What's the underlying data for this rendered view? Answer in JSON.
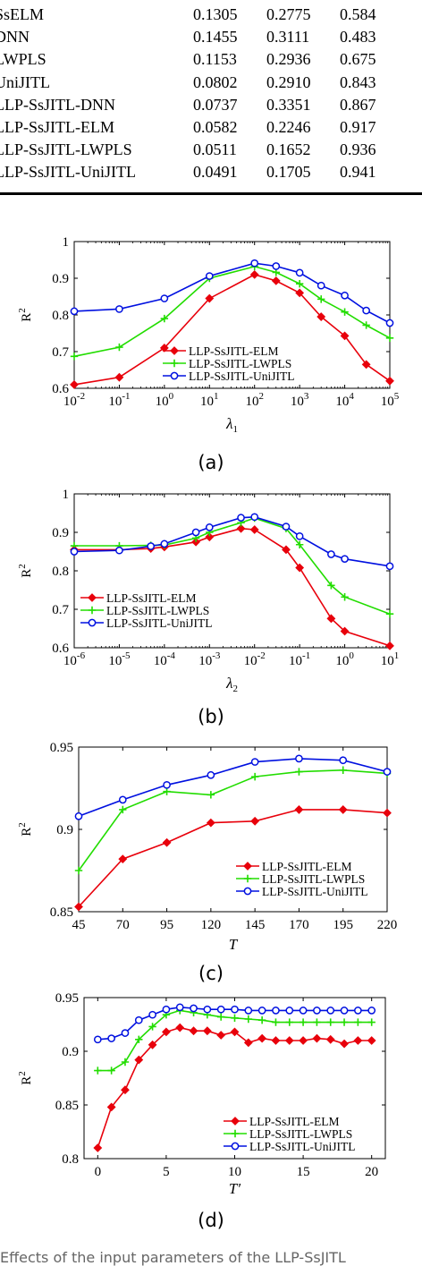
{
  "colors": {
    "elm": "#e8000b",
    "lwpls": "#22dd00",
    "unijitl": "#0010e0",
    "axis": "#000000"
  },
  "table": {
    "rows": [
      {
        "method": "SsELM",
        "v1": "0.1305",
        "v2": "0.2775",
        "v3": "0.584"
      },
      {
        "method": "DNN",
        "v1": "0.1455",
        "v2": "0.3111",
        "v3": "0.483"
      },
      {
        "method": "LWPLS",
        "v1": "0.1153",
        "v2": "0.2936",
        "v3": "0.675"
      },
      {
        "method": "UniJITL",
        "v1": "0.0802",
        "v2": "0.2910",
        "v3": "0.843"
      },
      {
        "method": "LLP-SsJITL-DNN",
        "v1": "0.0737",
        "v2": "0.3351",
        "v3": "0.867"
      },
      {
        "method": "LLP-SsJITL-ELM",
        "v1": "0.0582",
        "v2": "0.2246",
        "v3": "0.917"
      },
      {
        "method": "LLP-SsJITL-LWPLS",
        "v1": "0.0511",
        "v2": "0.1652",
        "v3": "0.936"
      },
      {
        "method": "LLP-SsJITL-UniJITL",
        "v1": "0.0491",
        "v2": "0.1705",
        "v3": "0.941"
      }
    ]
  },
  "chart_data": [
    {
      "type": "line",
      "caption": "(a)",
      "xlabel": "λ1",
      "ylabel": "R2",
      "xscale": "log",
      "xlim": [
        0.01,
        100000
      ],
      "ylim": [
        0.6,
        1
      ],
      "xticks": [
        "10^-2",
        "10^-1",
        "10^0",
        "10^1",
        "10^2",
        "10^3",
        "10^4",
        "10^5"
      ],
      "yticks": [
        "0.6",
        "0.7",
        "0.8",
        "0.9",
        "1"
      ],
      "legend_position": "bottom-center",
      "x": [
        0.01,
        0.1,
        1,
        10,
        100,
        300,
        1000,
        3000,
        10000,
        30000,
        100000
      ],
      "series": [
        {
          "name": "LLP-SsJITL-ELM",
          "marker": "diamond",
          "values": [
            0.61,
            0.63,
            0.71,
            0.845,
            0.91,
            0.893,
            0.86,
            0.795,
            0.743,
            0.665,
            0.62
          ]
        },
        {
          "name": "LLP-SsJITL-LWPLS",
          "marker": "plus",
          "values": [
            0.687,
            0.712,
            0.79,
            0.9,
            0.932,
            0.916,
            0.885,
            0.843,
            0.808,
            0.772,
            0.737
          ]
        },
        {
          "name": "LLP-SsJITL-UniJITL",
          "marker": "circle",
          "values": [
            0.81,
            0.816,
            0.845,
            0.906,
            0.941,
            0.933,
            0.915,
            0.88,
            0.853,
            0.812,
            0.778
          ]
        }
      ]
    },
    {
      "type": "line",
      "caption": "(b)",
      "xlabel": "λ2",
      "ylabel": "R2",
      "xscale": "log",
      "xlim": [
        1e-06,
        10
      ],
      "ylim": [
        0.6,
        1
      ],
      "xticks": [
        "10^-6",
        "10^-5",
        "10^-4",
        "10^-3",
        "10^-2",
        "10^-1",
        "10^0",
        "10^1"
      ],
      "yticks": [
        "0.6",
        "0.7",
        "0.8",
        "0.9",
        "1"
      ],
      "legend_position": "bottom-left",
      "x": [
        1e-06,
        1e-05,
        5e-05,
        0.0001,
        0.0005,
        0.001,
        0.005,
        0.01,
        0.05,
        0.1,
        0.5,
        1,
        10
      ],
      "series": [
        {
          "name": "LLP-SsJITL-ELM",
          "marker": "diamond",
          "values": [
            0.855,
            0.855,
            0.858,
            0.862,
            0.875,
            0.888,
            0.91,
            0.907,
            0.855,
            0.808,
            0.676,
            0.643,
            0.605
          ]
        },
        {
          "name": "LLP-SsJITL-LWPLS",
          "marker": "plus",
          "values": [
            0.865,
            0.865,
            0.866,
            0.867,
            0.885,
            0.9,
            0.925,
            0.937,
            0.91,
            0.868,
            0.762,
            0.732,
            0.688
          ]
        },
        {
          "name": "LLP-SsJITL-UniJITL",
          "marker": "circle",
          "values": [
            0.85,
            0.853,
            0.864,
            0.87,
            0.9,
            0.913,
            0.938,
            0.94,
            0.915,
            0.89,
            0.843,
            0.831,
            0.812
          ]
        }
      ]
    },
    {
      "type": "line",
      "caption": "(c)",
      "xlabel": "T",
      "ylabel": "R2",
      "xscale": "linear",
      "xlim": [
        45,
        220
      ],
      "ylim": [
        0.85,
        0.95
      ],
      "xticks": [
        "45",
        "70",
        "95",
        "120",
        "145",
        "170",
        "195",
        "220"
      ],
      "yticks": [
        "0.85",
        "0.9",
        "0.95"
      ],
      "legend_position": "bottom-right",
      "x": [
        45,
        70,
        95,
        120,
        145,
        170,
        195,
        220
      ],
      "series": [
        {
          "name": "LLP-SsJITL-ELM",
          "marker": "diamond",
          "values": [
            0.853,
            0.882,
            0.892,
            0.904,
            0.905,
            0.912,
            0.912,
            0.91
          ]
        },
        {
          "name": "LLP-SsJITL-LWPLS",
          "marker": "plus",
          "values": [
            0.875,
            0.912,
            0.923,
            0.921,
            0.932,
            0.935,
            0.936,
            0.934
          ]
        },
        {
          "name": "LLP-SsJITL-UniJITL",
          "marker": "circle",
          "values": [
            0.908,
            0.918,
            0.927,
            0.933,
            0.941,
            0.943,
            0.942,
            0.935
          ]
        }
      ]
    },
    {
      "type": "line",
      "caption": "(d)",
      "xlabel": "T′",
      "ylabel": "R2",
      "xscale": "linear",
      "xlim": [
        -1,
        21
      ],
      "ylim": [
        0.8,
        0.95
      ],
      "xticks": [
        "0",
        "5",
        "10",
        "15",
        "20"
      ],
      "xtickvals": [
        0,
        5,
        10,
        15,
        20
      ],
      "yticks": [
        "0.8",
        "0.85",
        "0.9",
        "0.95"
      ],
      "legend_position": "bottom-right",
      "x": [
        0,
        1,
        2,
        3,
        4,
        5,
        6,
        7,
        8,
        9,
        10,
        11,
        12,
        13,
        14,
        15,
        16,
        17,
        18,
        19,
        20
      ],
      "series": [
        {
          "name": "LLP-SsJITL-ELM",
          "marker": "diamond",
          "values": [
            0.81,
            0.848,
            0.864,
            0.892,
            0.906,
            0.918,
            0.922,
            0.919,
            0.919,
            0.915,
            0.918,
            0.908,
            0.912,
            0.91,
            0.91,
            0.91,
            0.912,
            0.911,
            0.907,
            0.91,
            0.91
          ]
        },
        {
          "name": "LLP-SsJITL-LWPLS",
          "marker": "plus",
          "values": [
            0.882,
            0.882,
            0.89,
            0.911,
            0.923,
            0.934,
            0.938,
            0.936,
            0.934,
            0.932,
            0.931,
            0.93,
            0.929,
            0.927,
            0.927,
            0.927,
            0.927,
            0.927,
            0.927,
            0.927,
            0.927
          ]
        },
        {
          "name": "LLP-SsJITL-UniJITL",
          "marker": "circle",
          "values": [
            0.911,
            0.912,
            0.917,
            0.929,
            0.934,
            0.939,
            0.941,
            0.94,
            0.939,
            0.939,
            0.939,
            0.938,
            0.938,
            0.938,
            0.938,
            0.938,
            0.938,
            0.938,
            0.938,
            0.938,
            0.938
          ]
        }
      ]
    }
  ],
  "footer_text": "Effects of the input parameters of the LLP-SsJITL"
}
